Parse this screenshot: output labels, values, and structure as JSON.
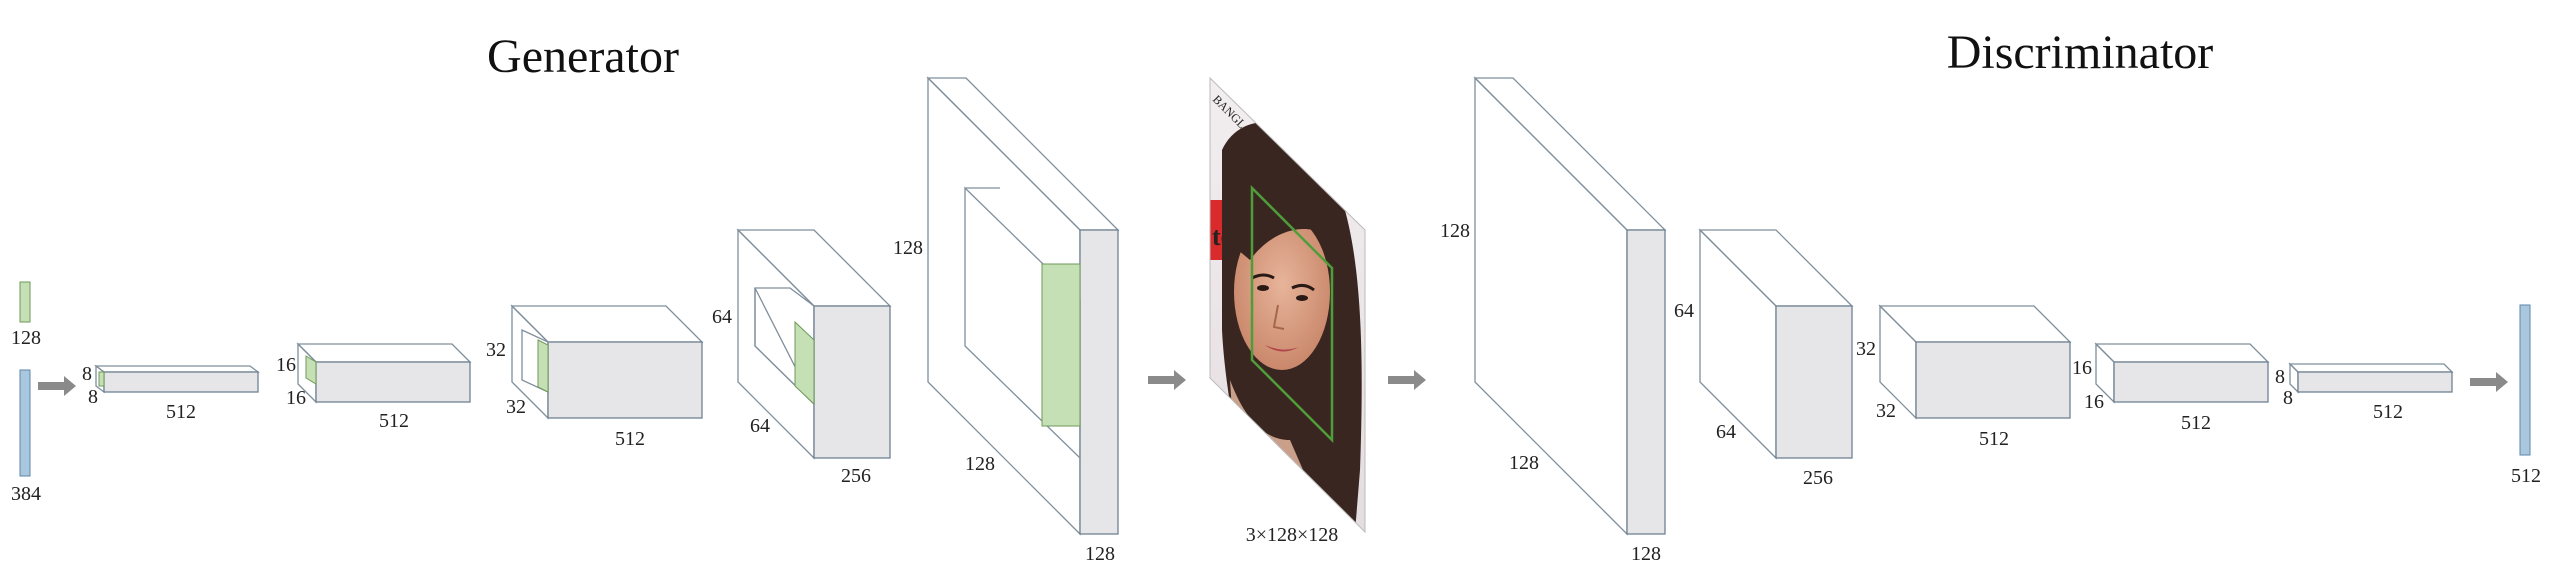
{
  "titles": {
    "generator": "Generator",
    "discriminator": "Discriminator"
  },
  "inputs": {
    "green_vector": "128",
    "blue_vector": "384",
    "output_vector": "512"
  },
  "generator_blocks": [
    {
      "id": "g1",
      "side": "8",
      "depth": "8",
      "width": "512"
    },
    {
      "id": "g2",
      "side": "16",
      "depth": "16",
      "width": "512"
    },
    {
      "id": "g3",
      "side": "32",
      "depth": "32",
      "width": "512"
    },
    {
      "id": "g4",
      "side": "64",
      "depth": "64",
      "width": "256"
    },
    {
      "id": "g5",
      "side": "128",
      "depth": "128",
      "width": "128"
    }
  ],
  "image": {
    "label": "3×128×128",
    "watermark": "BANGL",
    "sign_text": "te"
  },
  "discriminator_blocks": [
    {
      "id": "d1",
      "side": "128",
      "depth": "128",
      "width": "128"
    },
    {
      "id": "d2",
      "side": "64",
      "depth": "64",
      "width": "256"
    },
    {
      "id": "d3",
      "side": "32",
      "depth": "32",
      "width": "512"
    },
    {
      "id": "d4",
      "side": "16",
      "depth": "16",
      "width": "512"
    },
    {
      "id": "d5",
      "side": "8",
      "depth": "8",
      "width": "512"
    }
  ],
  "colors": {
    "block_front": "#e6e6e8",
    "edge": "#6f8293",
    "green": "#c6e0b6",
    "blue": "#a9c8e0",
    "arrow": "#8a8a8a"
  }
}
